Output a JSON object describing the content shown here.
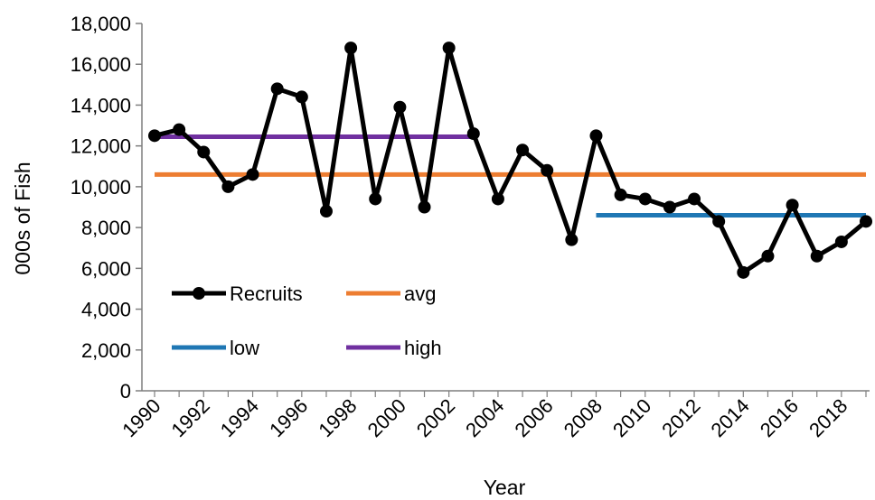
{
  "chart_data": {
    "type": "line",
    "xlabel": "Year",
    "ylabel": "000s of Fish",
    "xlim": [
      1990,
      2019
    ],
    "ylim": [
      0,
      18000
    ],
    "y_ticks": [
      0,
      2000,
      4000,
      6000,
      8000,
      10000,
      12000,
      14000,
      16000,
      18000
    ],
    "y_tick_labels": [
      "0",
      "2,000",
      "4,000",
      "6,000",
      "8,000",
      "10,000",
      "12,000",
      "14,000",
      "16,000",
      "18,000"
    ],
    "x_ticks": [
      1990,
      1992,
      1994,
      1996,
      1998,
      2000,
      2002,
      2004,
      2006,
      2008,
      2010,
      2012,
      2014,
      2016,
      2018
    ],
    "x_tick_labels": [
      "1990",
      "1992",
      "1994",
      "1996",
      "1998",
      "2000",
      "2002",
      "2004",
      "2006",
      "2008",
      "2010",
      "2012",
      "2014",
      "2016",
      "2018"
    ],
    "grid": false,
    "legend_position": "lower-left",
    "series": [
      {
        "name": "Recruits",
        "color": "#000000",
        "marker": "circle",
        "x": [
          1990,
          1991,
          1992,
          1993,
          1994,
          1995,
          1996,
          1997,
          1998,
          1999,
          2000,
          2001,
          2002,
          2003,
          2004,
          2005,
          2006,
          2007,
          2008,
          2009,
          2010,
          2011,
          2012,
          2013,
          2014,
          2015,
          2016,
          2017,
          2018,
          2019
        ],
        "y": [
          12500,
          12800,
          11700,
          10000,
          10600,
          14800,
          14400,
          8800,
          16800,
          9400,
          13900,
          9000,
          16800,
          12600,
          9400,
          11800,
          10800,
          7400,
          12500,
          9600,
          9400,
          9000,
          9400,
          8300,
          5800,
          6600,
          9100,
          6600,
          7300,
          8300
        ]
      },
      {
        "name": "avg",
        "color": "#ED7D31",
        "x": [
          1990,
          2019
        ],
        "y": [
          10600,
          10600
        ]
      },
      {
        "name": "low",
        "color": "#1F77B4",
        "x": [
          2008,
          2019
        ],
        "y": [
          8600,
          8600
        ]
      },
      {
        "name": "high",
        "color": "#7030A0",
        "x": [
          1990,
          2003
        ],
        "y": [
          12450,
          12450
        ]
      }
    ]
  }
}
